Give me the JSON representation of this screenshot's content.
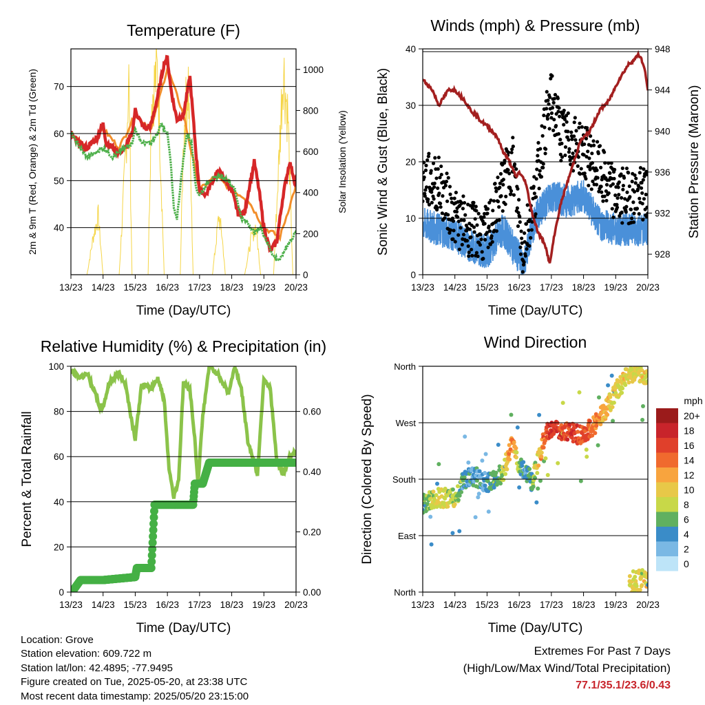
{
  "x_ticks": [
    "13/23",
    "14/23",
    "15/23",
    "16/23",
    "17/23",
    "18/23",
    "19/23",
    "20/23"
  ],
  "chart_data": [
    {
      "type": "line",
      "title": "Temperature (F)",
      "xlabel": "Time (Day/UTC)",
      "ylabel": "2m & 9m T (Red, Orange) & 2m Td (Green)",
      "ylabel_right": "Solar Insolation (Yellow)",
      "ylim": [
        30,
        78
      ],
      "yticks": [
        "40",
        "50",
        "60",
        "70"
      ],
      "ylim_right": [
        0,
        1100
      ],
      "yticks_right": [
        "0",
        "200",
        "400",
        "600",
        "800",
        "1000"
      ],
      "grid": "horizontal",
      "series": [
        {
          "name": "2m T",
          "color": "#d62728",
          "x": [
            0,
            0.2,
            0.5,
            0.8,
            1.0,
            1.1,
            1.3,
            1.5,
            1.7,
            1.9,
            2.0,
            2.2,
            2.35,
            2.5,
            2.7,
            2.9,
            3.0,
            3.1,
            3.2,
            3.3,
            3.5,
            3.7,
            3.9,
            4.0,
            4.2,
            4.4,
            4.6,
            4.8,
            5.0,
            5.2,
            5.4,
            5.5,
            5.7,
            5.85,
            6.0,
            6.2,
            6.4,
            6.6,
            6.8,
            7.0
          ],
          "values": [
            60,
            58,
            57,
            59,
            62,
            58,
            57,
            56,
            57,
            60,
            65,
            62,
            61,
            62,
            68,
            75,
            76,
            70,
            66,
            63,
            64,
            72,
            55,
            48,
            47,
            50,
            52,
            50,
            48,
            43,
            43,
            47,
            54,
            48,
            40,
            35,
            37,
            47,
            54,
            49
          ]
        },
        {
          "name": "9m T",
          "color": "#f28e2b",
          "x": [
            0,
            0.5,
            1.0,
            1.5,
            2.0,
            2.5,
            3.0,
            3.5,
            4.0,
            4.5,
            5.0,
            5.5,
            6.0,
            6.5,
            7.0
          ],
          "values": [
            60,
            57,
            61,
            57,
            64,
            61,
            74,
            64,
            48,
            51,
            48,
            46,
            40,
            38,
            49
          ]
        },
        {
          "name": "2m Td",
          "color": "#4daf4a",
          "x": [
            0,
            0.2,
            0.5,
            0.8,
            1.0,
            1.3,
            1.5,
            1.7,
            1.9,
            2.0,
            2.2,
            2.5,
            2.7,
            2.8,
            3.0,
            3.1,
            3.2,
            3.3,
            3.45,
            3.6,
            3.75,
            3.9,
            4.0,
            4.3,
            4.6,
            4.9,
            5.1,
            5.3,
            5.5,
            5.7,
            5.9,
            6.1,
            6.3,
            6.5,
            6.7,
            6.9,
            7.0
          ],
          "values": [
            60,
            58,
            55,
            56,
            57,
            55,
            56,
            57,
            58,
            61,
            58,
            58,
            60,
            62,
            60,
            54,
            44,
            42,
            52,
            60,
            58,
            48,
            47,
            50,
            51,
            50,
            48,
            42,
            41,
            39,
            40,
            37,
            34,
            33,
            36,
            38,
            39
          ]
        },
        {
          "name": "Solar Insolation",
          "axis": "right",
          "color": "#f5d547",
          "x": [
            0.5,
            0.7,
            0.85,
            1.0,
            1.5,
            1.7,
            1.8,
            1.9,
            2.4,
            2.5,
            2.7,
            2.9,
            3.4,
            3.5,
            3.65,
            3.8,
            4.4,
            4.6,
            4.7,
            4.8,
            5.4,
            5.6,
            5.75,
            5.9,
            6.3,
            6.5,
            6.6,
            6.75,
            6.9
          ],
          "values": [
            0,
            200,
            300,
            0,
            0,
            600,
            1000,
            0,
            0,
            900,
            1050,
            0,
            0,
            700,
            1000,
            0,
            0,
            300,
            200,
            0,
            0,
            180,
            250,
            0,
            0,
            700,
            1070,
            800,
            0
          ]
        }
      ]
    },
    {
      "type": "scatter",
      "title": "Winds (mph) & Pressure (mb)",
      "xlabel": "Time (Day/UTC)",
      "ylabel": "Sonic Wind & Gust (Blue, Black)",
      "ylabel_right": "Station Pressure (Maroon)",
      "ylim": [
        0,
        40
      ],
      "yticks": [
        "0",
        "10",
        "20",
        "30",
        "40"
      ],
      "ylim_right": [
        926,
        948
      ],
      "yticks_right": [
        "928",
        "932",
        "936",
        "940",
        "944",
        "948"
      ],
      "grid": "horizontal",
      "series": [
        {
          "name": "Sonic Wind",
          "color": "#4a90d9",
          "x": [
            0,
            0.5,
            1.0,
            1.5,
            2.0,
            2.5,
            3.0,
            3.1,
            3.5,
            4.0,
            4.5,
            5.0,
            5.5,
            6.0,
            6.5,
            7.0
          ],
          "values": [
            9,
            8,
            7,
            5,
            4,
            8,
            3,
            1,
            10,
            14,
            13,
            14,
            9,
            8,
            8,
            8
          ]
        },
        {
          "name": "Gust",
          "color": "#000000",
          "x": [
            0,
            0.5,
            1.0,
            1.5,
            2.0,
            2.5,
            2.8,
            3.0,
            3.1,
            3.5,
            3.8,
            4.0,
            4.3,
            4.5,
            5.0,
            5.5,
            6.0,
            6.5,
            7.0
          ],
          "values": [
            17,
            16,
            10,
            8,
            7,
            16,
            20,
            10,
            4,
            15,
            26,
            31,
            25,
            24,
            22,
            18,
            14,
            14,
            14
          ]
        },
        {
          "name": "Station Pressure",
          "axis": "right",
          "color": "#a31f1f",
          "x": [
            0,
            0.3,
            0.5,
            0.8,
            1.0,
            1.3,
            1.5,
            1.8,
            2.0,
            2.3,
            2.5,
            2.7,
            2.9,
            3.0,
            3.2,
            3.4,
            3.6,
            3.8,
            3.95,
            4.1,
            4.3,
            4.6,
            4.9,
            5.2,
            5.5,
            5.8,
            6.1,
            6.4,
            6.6,
            6.7,
            6.8,
            6.9,
            7.0
          ],
          "values": [
            945,
            944,
            942.5,
            944,
            944,
            943,
            942,
            941,
            940.5,
            939.5,
            938,
            937,
            935.5,
            936,
            935,
            932,
            930,
            929,
            927,
            930,
            933,
            936,
            939,
            940,
            942,
            943,
            945,
            946.5,
            947,
            947.5,
            947,
            946,
            944
          ]
        }
      ]
    },
    {
      "type": "line",
      "title": "Relative Humidity (%) & Precipitation (in)",
      "xlabel": "Time (Day/UTC)",
      "ylabel": "Percent & Total Rainfall",
      "ylim": [
        0,
        100
      ],
      "yticks": [
        "0",
        "20",
        "40",
        "60",
        "80",
        "100"
      ],
      "ylim_right": [
        0,
        0.75
      ],
      "yticks_right": [
        "0.00",
        "0.20",
        "0.40",
        "0.60"
      ],
      "grid": "horizontal",
      "series": [
        {
          "name": "Relative Humidity",
          "color": "#8bc34a",
          "x": [
            0,
            0.3,
            0.5,
            0.7,
            0.9,
            1.0,
            1.2,
            1.5,
            1.7,
            1.9,
            2.0,
            2.2,
            2.5,
            2.7,
            2.9,
            3.05,
            3.2,
            3.35,
            3.5,
            3.7,
            3.85,
            3.95,
            4.1,
            4.3,
            4.6,
            4.9,
            5.1,
            5.3,
            5.5,
            5.8,
            6.0,
            6.2,
            6.4,
            6.6,
            6.8,
            7.0
          ],
          "values": [
            98,
            95,
            97,
            90,
            82,
            82,
            93,
            97,
            92,
            75,
            68,
            92,
            90,
            95,
            85,
            55,
            42,
            50,
            93,
            90,
            68,
            48,
            78,
            100,
            96,
            88,
            100,
            90,
            67,
            52,
            95,
            90,
            58,
            52,
            60,
            62
          ]
        },
        {
          "name": "Total Precipitation",
          "axis": "right",
          "color": "#45b045",
          "x": [
            0,
            0.1,
            0.3,
            1.0,
            2.0,
            2.05,
            2.5,
            2.6,
            3.8,
            3.85,
            4.1,
            4.3,
            5.0,
            6.0,
            7.0
          ],
          "values": [
            0,
            0.01,
            0.04,
            0.04,
            0.05,
            0.08,
            0.08,
            0.29,
            0.29,
            0.36,
            0.36,
            0.43,
            0.43,
            0.43,
            0.43
          ]
        }
      ]
    },
    {
      "type": "scatter",
      "title": "Wind Direction",
      "xlabel": "Time (Day/UTC)",
      "ylabel": "Direction (Colored By Speed)",
      "ylim": [
        0,
        360
      ],
      "yticks": [
        "North",
        "East",
        "South",
        "West",
        "North"
      ],
      "grid": "horizontal",
      "legend_title": "mph",
      "legend_labels": [
        "20+",
        "18",
        "16",
        "14",
        "12",
        "10",
        "8",
        "6",
        "4",
        "2",
        "0"
      ],
      "legend_colors": [
        "#9b1b1b",
        "#c8242b",
        "#e0402b",
        "#f06a2e",
        "#f8a43e",
        "#e8c848",
        "#c8d848",
        "#60b060",
        "#3a8cc8",
        "#7ab8e4",
        "#bde4f8"
      ],
      "series": [
        {
          "name": "Direction",
          "x": [
            0,
            0.5,
            1.0,
            1.3,
            1.6,
            1.9,
            2.0,
            2.2,
            2.5,
            2.8,
            3.0,
            3.2,
            3.4,
            3.6,
            3.8,
            4.0,
            4.5,
            5.0,
            5.4,
            5.8,
            6.0,
            6.3,
            6.5,
            6.8,
            7.0
          ],
          "values": [
            140,
            150,
            150,
            180,
            185,
            175,
            175,
            180,
            190,
            240,
            200,
            195,
            175,
            210,
            250,
            260,
            255,
            250,
            270,
            300,
            320,
            340,
            350,
            350,
            340
          ],
          "speeds": [
            6,
            9,
            8,
            4,
            4,
            3,
            4,
            5,
            8,
            14,
            6,
            3,
            6,
            10,
            15,
            17,
            16,
            15,
            13,
            10,
            9,
            10,
            9,
            9,
            10
          ]
        }
      ]
    }
  ],
  "info": {
    "location": "Location: Grove",
    "elevation": "Station elevation: 609.722 m",
    "latlon": "Station lat/lon: 42.4895; -77.9495",
    "created": "Figure created on Tue, 2025-05-20, at 23:38 UTC",
    "recent": "Most recent data timestamp: 2025/05/20 23:15:00"
  },
  "extremes": {
    "title": "Extremes For Past 7 Days",
    "subtitle": "(High/Low/Max Wind/Total Precipitation)",
    "values": "77.1/35.1/23.6/0.43"
  }
}
